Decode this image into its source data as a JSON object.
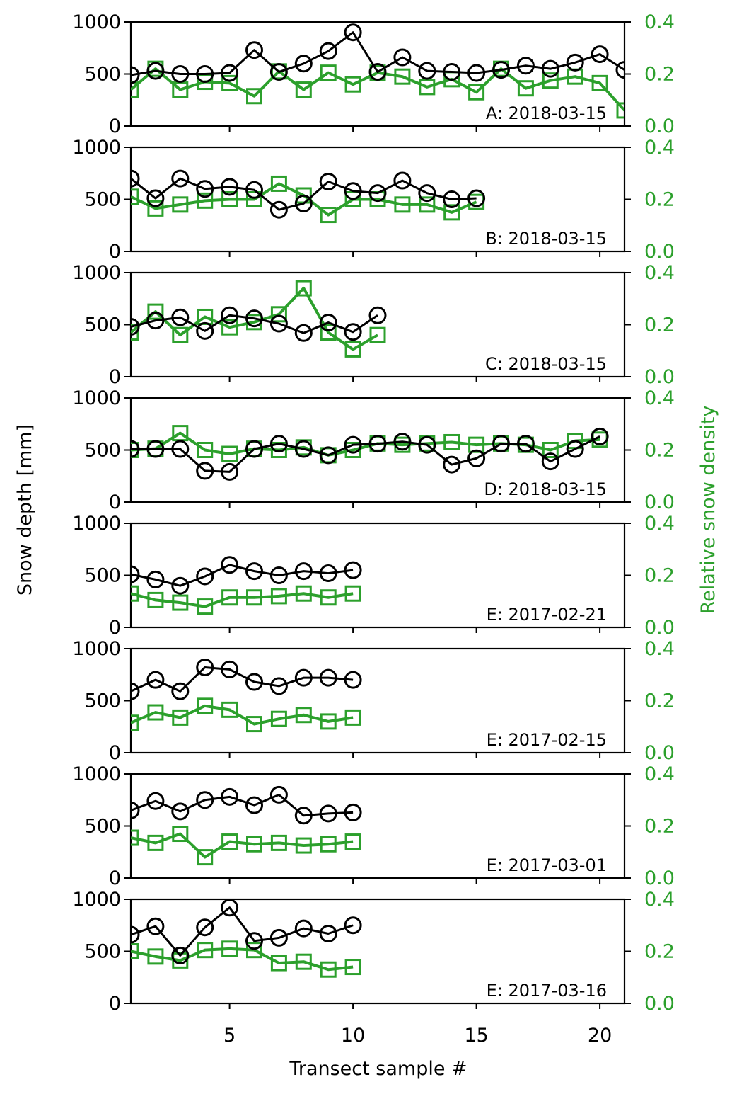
{
  "chart_data": {
    "type": "line",
    "xlabel": "Transect sample #",
    "ylabel_left": "Snow depth [mm]",
    "ylabel_right": "Relative snow density",
    "xlim": [
      1,
      21
    ],
    "ylim_left": [
      0,
      1000
    ],
    "ylim_right": [
      0.0,
      0.4
    ],
    "x_ticks": [
      5,
      10,
      15,
      20
    ],
    "y_ticks_left": [
      0,
      500,
      1000
    ],
    "y_ticks_right": [
      "0.0",
      "0.2",
      "0.4"
    ],
    "colors": {
      "depth": "#000000",
      "density": "#2ca02c"
    },
    "markers": {
      "depth": "circle",
      "density": "square"
    },
    "panels": [
      {
        "label": "A: 2018-03-15",
        "x": [
          1,
          2,
          3,
          4,
          5,
          6,
          7,
          8,
          9,
          10,
          11,
          12,
          13,
          14,
          15,
          16,
          17,
          18,
          19,
          20,
          21
        ],
        "depth": [
          490,
          530,
          500,
          500,
          510,
          730,
          520,
          600,
          720,
          900,
          520,
          660,
          530,
          520,
          510,
          540,
          580,
          550,
          610,
          690,
          540
        ],
        "density": [
          0.14,
          0.22,
          0.14,
          0.17,
          0.165,
          0.115,
          0.21,
          0.14,
          0.205,
          0.16,
          0.205,
          0.19,
          0.15,
          0.18,
          0.13,
          0.22,
          0.145,
          0.175,
          0.19,
          0.165,
          0.06
        ]
      },
      {
        "label": "B: 2018-03-15",
        "x": [
          1,
          2,
          3,
          4,
          5,
          6,
          7,
          8,
          9,
          10,
          11,
          12,
          13,
          14,
          15
        ],
        "depth": [
          700,
          510,
          700,
          600,
          620,
          590,
          400,
          460,
          670,
          580,
          560,
          680,
          560,
          500,
          510
        ],
        "density": [
          0.21,
          0.165,
          0.18,
          0.195,
          0.2,
          0.2,
          0.26,
          0.215,
          0.14,
          0.2,
          0.2,
          0.18,
          0.18,
          0.15,
          0.19
        ]
      },
      {
        "label": "C: 2018-03-15",
        "x": [
          1,
          2,
          3,
          4,
          5,
          6,
          7,
          8,
          9,
          10,
          11
        ],
        "depth": [
          480,
          540,
          570,
          440,
          590,
          560,
          510,
          420,
          520,
          430,
          590
        ],
        "density": [
          0.17,
          0.25,
          0.16,
          0.23,
          0.19,
          0.21,
          0.24,
          0.34,
          0.17,
          0.105,
          0.16
        ]
      },
      {
        "label": "D: 2018-03-15",
        "x": [
          1,
          2,
          3,
          4,
          5,
          6,
          7,
          8,
          9,
          10,
          11,
          12,
          13,
          14,
          15,
          16,
          17,
          18,
          19,
          20
        ],
        "depth": [
          510,
          510,
          510,
          300,
          290,
          510,
          560,
          510,
          450,
          550,
          560,
          580,
          550,
          360,
          420,
          560,
          560,
          390,
          510,
          630
        ],
        "density": [
          0.2,
          0.205,
          0.265,
          0.2,
          0.185,
          0.205,
          0.2,
          0.21,
          0.18,
          0.2,
          0.225,
          0.22,
          0.225,
          0.23,
          0.22,
          0.225,
          0.22,
          0.2,
          0.235,
          0.24
        ]
      },
      {
        "label": "E: 2017-02-21",
        "x": [
          1,
          2,
          3,
          4,
          5,
          6,
          7,
          8,
          9,
          10
        ],
        "depth": [
          510,
          460,
          400,
          490,
          600,
          540,
          500,
          540,
          520,
          550
        ],
        "density": [
          0.13,
          0.105,
          0.095,
          0.08,
          0.115,
          0.115,
          0.12,
          0.13,
          0.115,
          0.13
        ]
      },
      {
        "label": "E: 2017-02-15",
        "x": [
          1,
          2,
          3,
          4,
          5,
          6,
          7,
          8,
          9,
          10
        ],
        "depth": [
          590,
          700,
          590,
          820,
          800,
          680,
          640,
          720,
          720,
          700
        ],
        "density": [
          0.115,
          0.155,
          0.135,
          0.18,
          0.165,
          0.11,
          0.13,
          0.145,
          0.12,
          0.135
        ]
      },
      {
        "label": "E: 2017-03-01",
        "x": [
          1,
          2,
          3,
          4,
          5,
          6,
          7,
          8,
          9,
          10
        ],
        "depth": [
          650,
          740,
          640,
          750,
          780,
          700,
          800,
          600,
          620,
          630
        ],
        "density": [
          0.155,
          0.135,
          0.17,
          0.08,
          0.14,
          0.13,
          0.135,
          0.125,
          0.13,
          0.14
        ]
      },
      {
        "label": "E: 2017-03-16",
        "x": [
          1,
          2,
          3,
          4,
          5,
          6,
          7,
          8,
          9,
          10
        ],
        "depth": [
          660,
          740,
          460,
          730,
          920,
          600,
          630,
          720,
          670,
          750
        ],
        "density": [
          0.2,
          0.18,
          0.165,
          0.205,
          0.21,
          0.205,
          0.155,
          0.16,
          0.13,
          0.14
        ]
      }
    ]
  }
}
